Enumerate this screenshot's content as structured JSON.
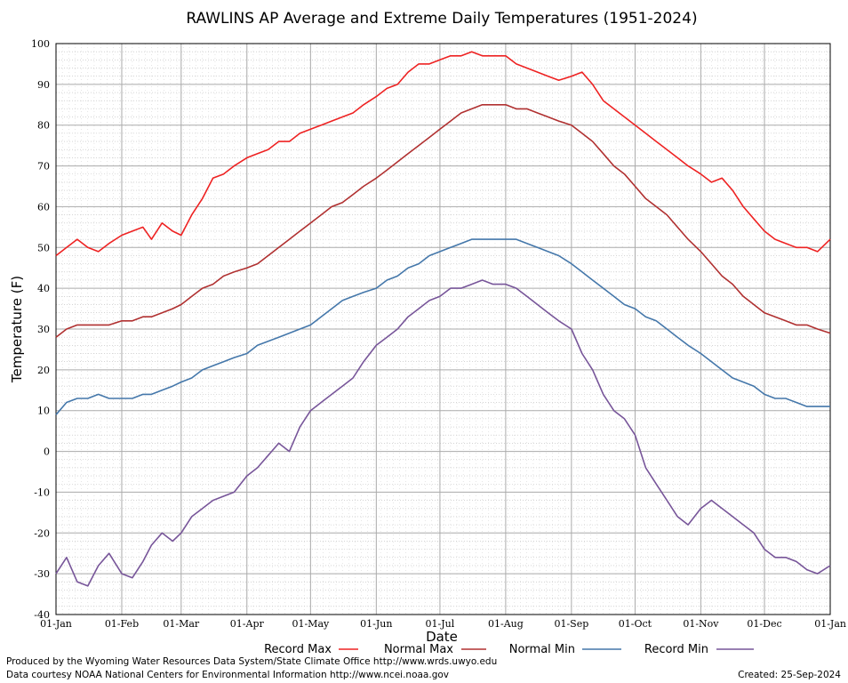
{
  "chart_data": {
    "type": "line",
    "title": "RAWLINS AP Average and Extreme Daily Temperatures (1951-2024)",
    "xlabel": "Date",
    "ylabel": "Temperature (F)",
    "ylim": [
      -40,
      100
    ],
    "yticks": [
      100,
      90,
      80,
      70,
      60,
      50,
      40,
      30,
      20,
      10,
      0,
      -10,
      -20,
      -30,
      -40
    ],
    "xlim": [
      0,
      365
    ],
    "xticks": [
      {
        "label": "01-Jan",
        "day": 0
      },
      {
        "label": "01-Feb",
        "day": 31
      },
      {
        "label": "01-Mar",
        "day": 59
      },
      {
        "label": "01-Apr",
        "day": 90
      },
      {
        "label": "01-May",
        "day": 120
      },
      {
        "label": "01-Jun",
        "day": 151
      },
      {
        "label": "01-Jul",
        "day": 181
      },
      {
        "label": "01-Aug",
        "day": 212
      },
      {
        "label": "01-Sep",
        "day": 243
      },
      {
        "label": "01-Oct",
        "day": 273
      },
      {
        "label": "01-Nov",
        "day": 304
      },
      {
        "label": "01-Dec",
        "day": 334
      },
      {
        "label": "01-Jan",
        "day": 365
      }
    ],
    "grid": true,
    "legend_position": "bottom",
    "series": [
      {
        "name": "Record Max",
        "color": "#ee2222",
        "x": [
          0,
          5,
          10,
          15,
          20,
          25,
          31,
          36,
          41,
          45,
          50,
          55,
          59,
          64,
          69,
          74,
          79,
          84,
          90,
          95,
          100,
          105,
          110,
          115,
          120,
          125,
          130,
          135,
          140,
          145,
          151,
          156,
          161,
          166,
          171,
          176,
          181,
          186,
          191,
          196,
          201,
          206,
          212,
          217,
          222,
          227,
          232,
          237,
          243,
          248,
          253,
          258,
          263,
          268,
          273,
          278,
          283,
          288,
          293,
          298,
          304,
          309,
          314,
          319,
          324,
          329,
          334,
          339,
          344,
          349,
          354,
          359,
          365
        ],
        "y": [
          48,
          50,
          52,
          50,
          49,
          51,
          53,
          54,
          55,
          52,
          56,
          54,
          53,
          58,
          62,
          67,
          68,
          70,
          72,
          73,
          74,
          76,
          76,
          78,
          79,
          80,
          81,
          82,
          83,
          85,
          87,
          89,
          90,
          93,
          95,
          95,
          96,
          97,
          97,
          98,
          97,
          97,
          97,
          95,
          94,
          93,
          92,
          91,
          92,
          93,
          90,
          86,
          84,
          82,
          80,
          78,
          76,
          74,
          72,
          70,
          68,
          66,
          67,
          64,
          60,
          57,
          54,
          52,
          51,
          50,
          50,
          49,
          52
        ]
      },
      {
        "name": "Normal Max",
        "color": "#b03030",
        "x": [
          0,
          5,
          10,
          15,
          20,
          25,
          31,
          36,
          41,
          45,
          50,
          55,
          59,
          64,
          69,
          74,
          79,
          84,
          90,
          95,
          100,
          105,
          110,
          115,
          120,
          125,
          130,
          135,
          140,
          145,
          151,
          156,
          161,
          166,
          171,
          176,
          181,
          186,
          191,
          196,
          201,
          206,
          212,
          217,
          222,
          227,
          232,
          237,
          243,
          248,
          253,
          258,
          263,
          268,
          273,
          278,
          283,
          288,
          293,
          298,
          304,
          309,
          314,
          319,
          324,
          329,
          334,
          339,
          344,
          349,
          354,
          359,
          365
        ],
        "y": [
          28,
          30,
          31,
          31,
          31,
          31,
          32,
          32,
          33,
          33,
          34,
          35,
          36,
          38,
          40,
          41,
          43,
          44,
          45,
          46,
          48,
          50,
          52,
          54,
          56,
          58,
          60,
          61,
          63,
          65,
          67,
          69,
          71,
          73,
          75,
          77,
          79,
          81,
          83,
          84,
          85,
          85,
          85,
          84,
          84,
          83,
          82,
          81,
          80,
          78,
          76,
          73,
          70,
          68,
          65,
          62,
          60,
          58,
          55,
          52,
          49,
          46,
          43,
          41,
          38,
          36,
          34,
          33,
          32,
          31,
          31,
          30,
          29
        ]
      },
      {
        "name": "Normal Min",
        "color": "#4477aa",
        "x": [
          0,
          5,
          10,
          15,
          20,
          25,
          31,
          36,
          41,
          45,
          50,
          55,
          59,
          64,
          69,
          74,
          79,
          84,
          90,
          95,
          100,
          105,
          110,
          115,
          120,
          125,
          130,
          135,
          140,
          145,
          151,
          156,
          161,
          166,
          171,
          176,
          181,
          186,
          191,
          196,
          201,
          206,
          212,
          217,
          222,
          227,
          232,
          237,
          243,
          248,
          253,
          258,
          263,
          268,
          273,
          278,
          283,
          288,
          293,
          298,
          304,
          309,
          314,
          319,
          324,
          329,
          334,
          339,
          344,
          349,
          354,
          359,
          365
        ],
        "y": [
          9,
          12,
          13,
          13,
          14,
          13,
          13,
          13,
          14,
          14,
          15,
          16,
          17,
          18,
          20,
          21,
          22,
          23,
          24,
          26,
          27,
          28,
          29,
          30,
          31,
          33,
          35,
          37,
          38,
          39,
          40,
          42,
          43,
          45,
          46,
          48,
          49,
          50,
          51,
          52,
          52,
          52,
          52,
          52,
          51,
          50,
          49,
          48,
          46,
          44,
          42,
          40,
          38,
          36,
          35,
          33,
          32,
          30,
          28,
          26,
          24,
          22,
          20,
          18,
          17,
          16,
          14,
          13,
          13,
          12,
          11,
          11,
          11
        ]
      },
      {
        "name": "Record Min",
        "color": "#775599",
        "x": [
          0,
          5,
          10,
          15,
          20,
          25,
          31,
          36,
          41,
          45,
          50,
          55,
          59,
          64,
          69,
          74,
          79,
          84,
          90,
          95,
          100,
          105,
          110,
          115,
          120,
          125,
          130,
          135,
          140,
          145,
          151,
          156,
          161,
          166,
          171,
          176,
          181,
          186,
          191,
          196,
          201,
          206,
          212,
          217,
          222,
          227,
          232,
          237,
          243,
          248,
          253,
          258,
          263,
          268,
          273,
          278,
          283,
          288,
          293,
          298,
          304,
          309,
          314,
          319,
          324,
          329,
          334,
          339,
          344,
          349,
          354,
          359,
          365
        ],
        "y": [
          -30,
          -26,
          -32,
          -33,
          -28,
          -25,
          -30,
          -31,
          -27,
          -23,
          -20,
          -22,
          -20,
          -16,
          -14,
          -12,
          -11,
          -10,
          -6,
          -4,
          -1,
          2,
          0,
          6,
          10,
          12,
          14,
          16,
          18,
          22,
          26,
          28,
          30,
          33,
          35,
          37,
          38,
          40,
          40,
          41,
          42,
          41,
          41,
          40,
          38,
          36,
          34,
          32,
          30,
          24,
          20,
          14,
          10,
          8,
          4,
          -4,
          -8,
          -12,
          -16,
          -18,
          -14,
          -12,
          -14,
          -16,
          -18,
          -20,
          -24,
          -26,
          -26,
          -27,
          -29,
          -30,
          -28
        ]
      }
    ]
  },
  "footer": {
    "produced_by": "Produced by the Wyoming Water Resources Data System/State Climate Office http://www.wrds.uwyo.edu",
    "data_courtesy": "Data courtesy NOAA National Centers for Environmental Information http://www.ncei.noaa.gov",
    "created": "Created:  25-Sep-2024"
  }
}
